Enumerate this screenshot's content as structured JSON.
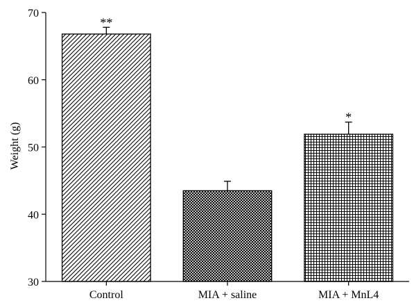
{
  "chart_data": {
    "type": "bar",
    "title": "",
    "xlabel": "",
    "ylabel": "Weight (g)",
    "ylim": [
      30,
      70
    ],
    "yticks": [
      30,
      40,
      50,
      60,
      70
    ],
    "grid": false,
    "categories": [
      "Control",
      "MIA + saline",
      "MIA + MnL4"
    ],
    "values": [
      66.8,
      43.5,
      51.9
    ],
    "errors": [
      1.0,
      1.4,
      1.8
    ],
    "annotations": [
      "**",
      "",
      "*"
    ],
    "patterns": [
      "diagonal-hatch",
      "cross-hatch",
      "grid-hatch"
    ]
  }
}
